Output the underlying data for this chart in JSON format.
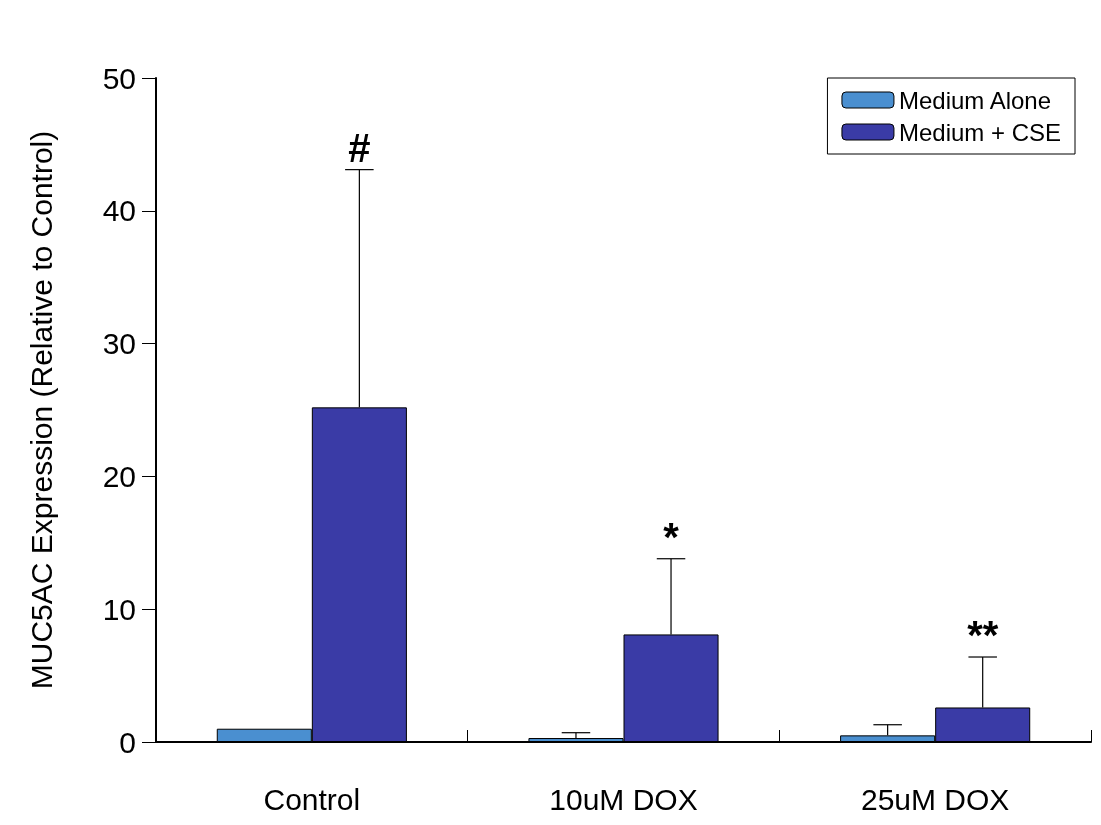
{
  "chart_data": {
    "type": "bar",
    "ylabel": "MUC5AC Expression (Relative to Control)",
    "categories": [
      "Control",
      "10uM DOX",
      "25uM DOX"
    ],
    "series": [
      {
        "name": "Medium Alone",
        "color": "#4a8fd0",
        "values": [
          1.0,
          0.3,
          0.5
        ],
        "errors": [
          null,
          [
            0.3,
            0.7
          ],
          [
            0.5,
            1.3
          ]
        ]
      },
      {
        "name": "Medium + CSE",
        "color": "#3a3ba6",
        "values": [
          25.2,
          8.1,
          2.6
        ],
        "errors": [
          [
            25.2,
            43.1
          ],
          [
            8.1,
            13.8
          ],
          [
            2.6,
            6.4
          ]
        ]
      }
    ],
    "annotations": [
      "#",
      "*",
      "**"
    ],
    "ylim": [
      0,
      50
    ],
    "yticks": [
      0,
      10,
      20,
      30,
      40,
      50
    ],
    "grid": false,
    "legend": "top right"
  }
}
